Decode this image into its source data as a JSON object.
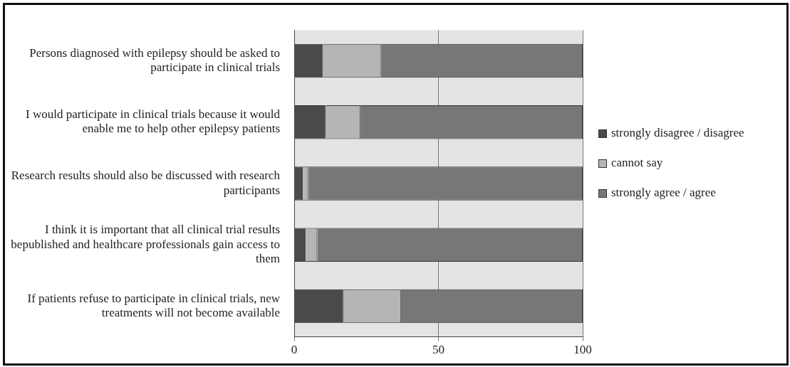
{
  "chart_data": {
    "type": "bar",
    "orientation": "horizontal",
    "stacked": true,
    "categories": [
      "Persons diagnosed with epilepsy should be asked to participate in clinical trials",
      "I would participate in clinical trials because it would enable me to help other epilepsy patients",
      "Research results should also be discussed with research participants",
      "I think it is important that all clinical trial results bepublished and healthcare professionals gain access to them",
      "If patients refuse to participate in clinical trials, new treatments will not become available"
    ],
    "series": [
      {
        "name": "strongly disagree / disagree",
        "color": "#4a4a4a",
        "values": [
          10,
          11,
          3,
          4,
          17
        ]
      },
      {
        "name": "cannot say",
        "color": "#b5b5b5",
        "values": [
          20,
          12,
          2,
          4,
          20
        ]
      },
      {
        "name": "strongly agree / agree",
        "color": "#777777",
        "values": [
          70,
          77,
          95,
          92,
          63
        ]
      }
    ],
    "xlim": [
      0,
      100
    ],
    "xticks": [
      0,
      50,
      100
    ],
    "grid": "x",
    "legend": "right"
  }
}
